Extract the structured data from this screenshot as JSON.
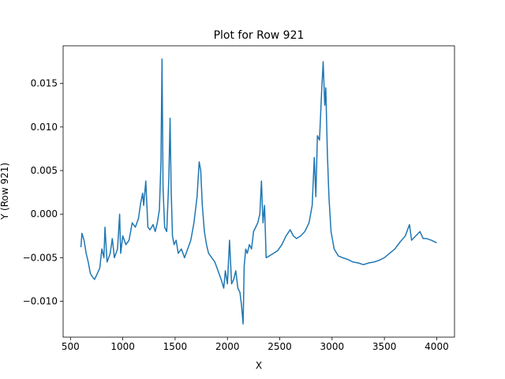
{
  "chart_data": {
    "type": "line",
    "title": "Plot for Row 921",
    "x_label": "X",
    "y_label": "Y (Row 921)",
    "color": "#1f77b4",
    "grid": false,
    "x": [
      600,
      610,
      630,
      650,
      670,
      690,
      710,
      730,
      750,
      780,
      800,
      820,
      830,
      850,
      880,
      900,
      920,
      950,
      970,
      980,
      1000,
      1030,
      1060,
      1090,
      1120,
      1150,
      1170,
      1190,
      1200,
      1220,
      1240,
      1260,
      1290,
      1310,
      1330,
      1350,
      1365,
      1375,
      1385,
      1400,
      1420,
      1440,
      1452,
      1462,
      1475,
      1490,
      1510,
      1530,
      1560,
      1590,
      1620,
      1650,
      1680,
      1710,
      1730,
      1745,
      1760,
      1780,
      1800,
      1820,
      1850,
      1880,
      1910,
      1940,
      1965,
      1980,
      2000,
      2020,
      2040,
      2060,
      2080,
      2100,
      2120,
      2135,
      2150,
      2160,
      2175,
      2190,
      2210,
      2230,
      2250,
      2270,
      2290,
      2310,
      2325,
      2340,
      2355,
      2370,
      2400,
      2440,
      2480,
      2520,
      2560,
      2600,
      2630,
      2660,
      2700,
      2740,
      2780,
      2810,
      2830,
      2845,
      2860,
      2880,
      2900,
      2915,
      2930,
      2940,
      2955,
      2970,
      2990,
      3020,
      3060,
      3100,
      3150,
      3200,
      3250,
      3300,
      3350,
      3400,
      3450,
      3500,
      3550,
      3600,
      3650,
      3700,
      3740,
      3760,
      3800,
      3840,
      3870,
      3900,
      3950,
      4000
    ],
    "values": [
      -0.0038,
      -0.0022,
      -0.003,
      -0.0045,
      -0.0055,
      -0.0068,
      -0.0072,
      -0.0075,
      -0.007,
      -0.0062,
      -0.004,
      -0.005,
      -0.0015,
      -0.0055,
      -0.0045,
      -0.0028,
      -0.005,
      -0.004,
      0.0,
      -0.0045,
      -0.0025,
      -0.0035,
      -0.003,
      -0.001,
      -0.0015,
      -0.0005,
      0.0012,
      0.0024,
      0.001,
      0.0038,
      -0.0015,
      -0.0018,
      -0.0012,
      -0.002,
      -0.001,
      0.0005,
      0.006,
      0.0178,
      0.003,
      -0.0015,
      -0.002,
      0.004,
      0.011,
      0.003,
      -0.0025,
      -0.0035,
      -0.003,
      -0.0045,
      -0.004,
      -0.005,
      -0.004,
      -0.003,
      -0.001,
      0.002,
      0.006,
      0.005,
      0.001,
      -0.002,
      -0.0035,
      -0.0045,
      -0.005,
      -0.0055,
      -0.0065,
      -0.0075,
      -0.0085,
      -0.0065,
      -0.008,
      -0.003,
      -0.008,
      -0.0075,
      -0.0065,
      -0.0085,
      -0.009,
      -0.0105,
      -0.0126,
      -0.006,
      -0.004,
      -0.0045,
      -0.0035,
      -0.004,
      -0.002,
      -0.0015,
      -0.001,
      0.0,
      0.0038,
      -0.001,
      0.001,
      -0.005,
      -0.0048,
      -0.0045,
      -0.0042,
      -0.0035,
      -0.0025,
      -0.0018,
      -0.0025,
      -0.0028,
      -0.0025,
      -0.002,
      -0.001,
      0.001,
      0.0065,
      0.002,
      0.009,
      0.0085,
      0.014,
      0.0175,
      0.0125,
      0.0145,
      0.007,
      0.002,
      -0.002,
      -0.004,
      -0.0048,
      -0.005,
      -0.0052,
      -0.0055,
      -0.0056,
      -0.0058,
      -0.0056,
      -0.0055,
      -0.0053,
      -0.005,
      -0.0045,
      -0.004,
      -0.0032,
      -0.0025,
      -0.0012,
      -0.003,
      -0.0025,
      -0.002,
      -0.0028,
      -0.0028,
      -0.003,
      -0.0033
    ],
    "xlim": [
      430,
      4170
    ],
    "xticks": [
      500,
      1000,
      1500,
      2000,
      2500,
      3000,
      3500,
      4000
    ],
    "ylim": [
      -0.01412,
      0.01932
    ],
    "yticks": [
      {
        "value": -0.01,
        "label": "−0.010"
      },
      {
        "value": -0.005,
        "label": "−0.005"
      },
      {
        "value": 0,
        "label": "0.000"
      },
      {
        "value": 0.005,
        "label": "0.005"
      },
      {
        "value": 0.01,
        "label": "0.010"
      },
      {
        "value": 0.015,
        "label": "0.015"
      }
    ]
  }
}
